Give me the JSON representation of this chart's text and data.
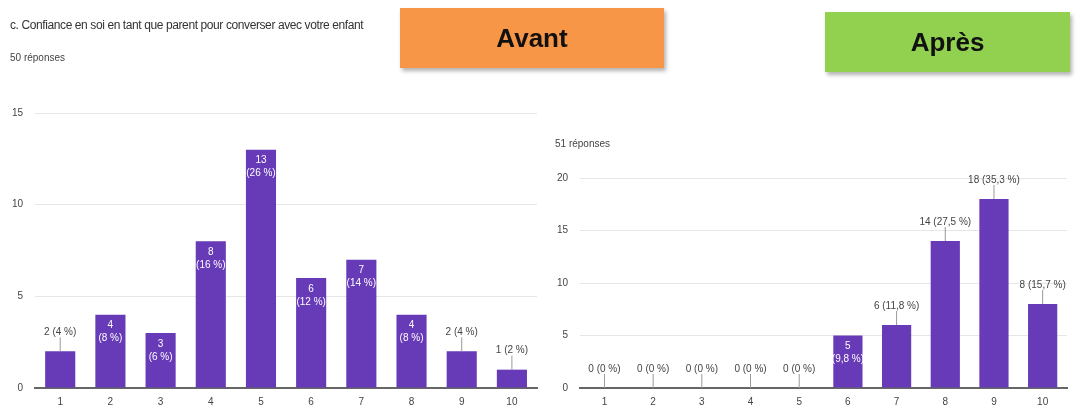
{
  "chart_data": [
    {
      "type": "bar",
      "title": "c. Confiance en soi en tant que parent pour converser avec votre enfant",
      "subtitle": "50 réponses",
      "annotations": [
        "Avant"
      ],
      "categories": [
        "1",
        "2",
        "3",
        "4",
        "5",
        "6",
        "7",
        "8",
        "9",
        "10"
      ],
      "values": [
        2,
        4,
        3,
        8,
        13,
        6,
        7,
        4,
        2,
        1
      ],
      "color": "#673ab7",
      "value_labels": [
        "2 (4 %)",
        "4 (8 %)",
        "3 (6 %)",
        "8 (16 %)",
        "13 (26 %)",
        "6 (12 %)",
        "7 (14 %)",
        "4 (8 %)",
        "2 (4 %)",
        "1 (2 %)"
      ],
      "ylim": [
        0,
        15
      ],
      "yticks": [
        0,
        5,
        10,
        15
      ],
      "grid": "y"
    },
    {
      "type": "bar",
      "subtitle": "51 réponses",
      "annotations": [
        "Après"
      ],
      "categories": [
        "1",
        "2",
        "3",
        "4",
        "5",
        "6",
        "7",
        "8",
        "9",
        "10"
      ],
      "values": [
        0,
        0,
        0,
        0,
        0,
        5,
        6,
        14,
        18,
        8
      ],
      "color": "#673ab7",
      "value_labels": [
        "0 (0 %)",
        "0 (0 %)",
        "0 (0 %)",
        "0 (0 %)",
        "0 (0 %)",
        "5 (9,8 %)",
        "6 (11,8 %)",
        "14 (27,5 %)",
        "18 (35,3 %)",
        "8 (15,7 %)"
      ],
      "ylim": [
        0,
        20
      ],
      "yticks": [
        0,
        5,
        10,
        15,
        20
      ],
      "grid": "y"
    }
  ]
}
